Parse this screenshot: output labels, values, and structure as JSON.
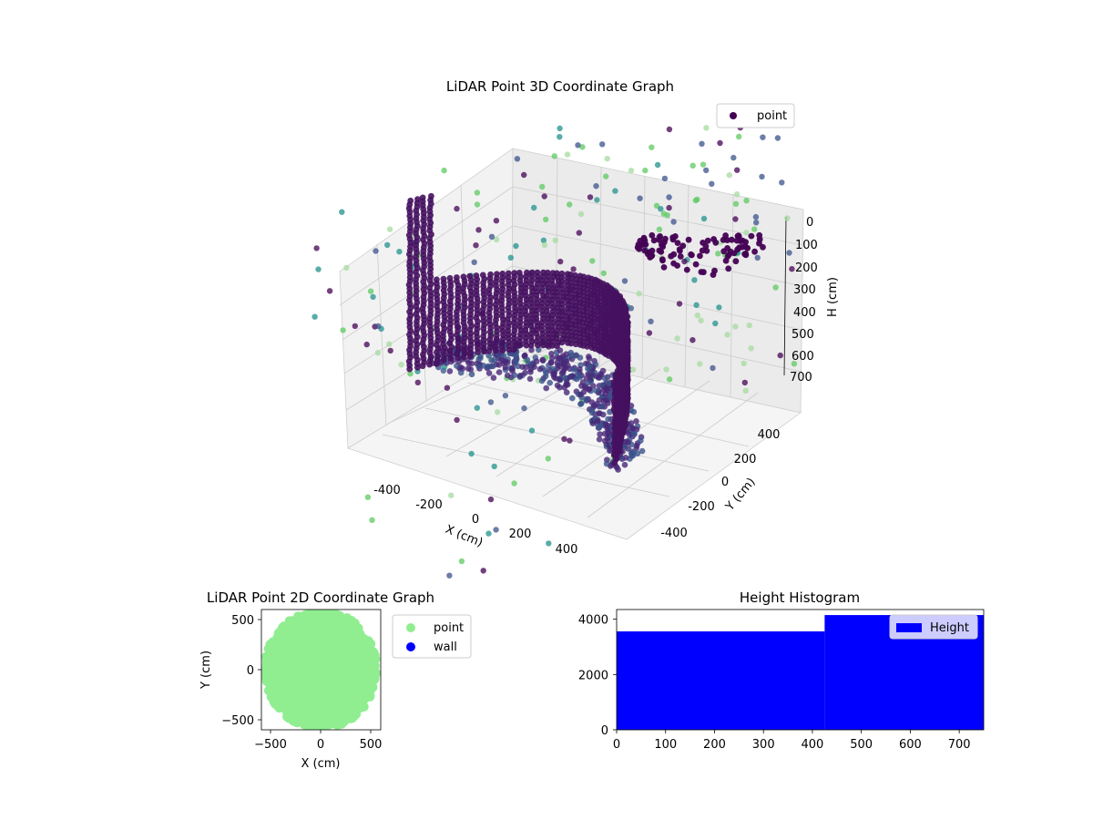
{
  "colors": {
    "wall_points": "#440154",
    "scatter_cmap": [
      "#440154",
      "#3b528b",
      "#21918c",
      "#5ec962",
      "#a6dba0"
    ],
    "point_2d": "#90ee90",
    "wall_2d": "#0000ff",
    "histogram": "#0000ff",
    "pane": "#f2f2f2",
    "grid": "#d0d0d0"
  },
  "chart_data": [
    {
      "type": "scatter",
      "projection": "3d",
      "title": "LiDAR Point 3D Coordinate Graph",
      "xlabel": "X (cm)",
      "ylabel": "Y (cm)",
      "zlabel": "H (cm)",
      "x_ticks": [
        "-400",
        "-200",
        "0",
        "200",
        "400"
      ],
      "y_ticks": [
        "-400",
        "-200",
        "0",
        "200",
        "400"
      ],
      "z_ticks": [
        "0",
        "100",
        "200",
        "300",
        "400",
        "500",
        "600",
        "700"
      ],
      "xlim": [
        -600,
        600
      ],
      "ylim": [
        -600,
        600
      ],
      "zlim": [
        750,
        0
      ],
      "legend": [
        "point"
      ],
      "legend_position": "top-right",
      "grid": true,
      "description_series": [
        {
          "name": "point",
          "kind": "curved wall arc",
          "x_range": [
            -450,
            420
          ],
          "y_range": [
            -200,
            250
          ],
          "h_range": [
            400,
            700
          ]
        },
        {
          "name": "point",
          "kind": "structure ring",
          "x_range": [
            -200,
            320
          ],
          "y_range": [
            150,
            420
          ],
          "h_range": [
            50,
            450
          ]
        }
      ]
    },
    {
      "type": "scatter",
      "title": "LiDAR Point 2D Coordinate Graph",
      "xlabel": "X (cm)",
      "ylabel": "Y (cm)",
      "x_ticks": [
        "−500",
        "0",
        "500"
      ],
      "y_ticks": [
        "500",
        "0",
        "−500"
      ],
      "xlim": [
        -600,
        600
      ],
      "ylim": [
        -600,
        600
      ],
      "series": [
        {
          "name": "point",
          "color": "#90ee90",
          "extent": {
            "x": [
              -550,
              560
            ],
            "y": [
              -580,
              600
            ]
          }
        },
        {
          "name": "wall",
          "color": "#0000ff",
          "count": 0
        }
      ],
      "legend_position": "outside-right"
    },
    {
      "type": "bar",
      "title": "Height Histogram",
      "x_ticks": [
        "0",
        "100",
        "200",
        "300",
        "400",
        "500",
        "600",
        "700"
      ],
      "y_ticks": [
        "0",
        "2000",
        "4000"
      ],
      "xlim": [
        0,
        750
      ],
      "ylim": [
        0,
        4350
      ],
      "bins": [
        {
          "from": 0,
          "to": 425,
          "count": 3560
        },
        {
          "from": 425,
          "to": 750,
          "count": 4150
        }
      ],
      "legend": [
        "Height"
      ],
      "legend_position": "top-right"
    }
  ]
}
